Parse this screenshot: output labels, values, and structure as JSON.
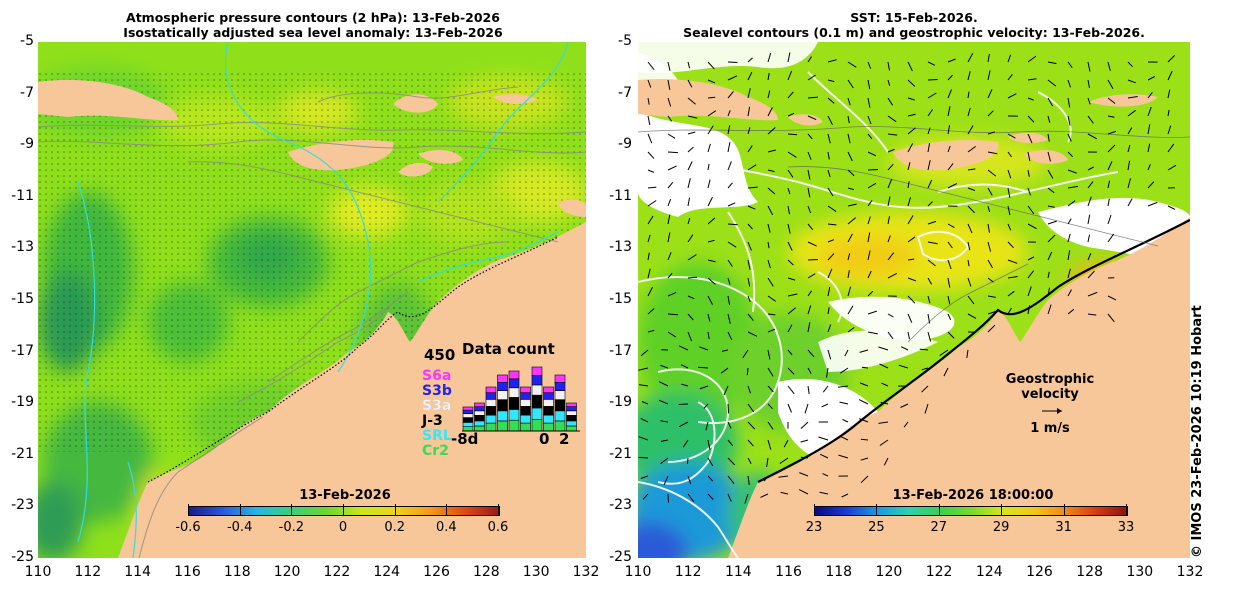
{
  "left_panel": {
    "title_line1": "Atmospheric pressure contours (2 hPa): 13-Feb-2026",
    "title_line2": "Isostatically adjusted sea level anomaly: 13-Feb-2026",
    "colorbar": {
      "date": "13-Feb-2026",
      "ticks": [
        "-0.6",
        "-0.4",
        "-0.2",
        "0",
        "0.2",
        "0.4",
        "0.6"
      ]
    },
    "data_count": {
      "title": "Data count",
      "max_label": "450",
      "missions": [
        {
          "name": "S6a",
          "color": "#ff33ff"
        },
        {
          "name": "S3b",
          "color": "#2222ee"
        },
        {
          "name": "S3a",
          "color": "#f2f2f2"
        },
        {
          "name": "J-3",
          "color": "#000000"
        },
        {
          "name": "SRL",
          "color": "#33e6ff"
        },
        {
          "name": "Cr2",
          "color": "#33dd55"
        }
      ],
      "x_left": "-8d",
      "x_mid": "0",
      "x_right": "2"
    }
  },
  "right_panel": {
    "title_line1": "SST: 15-Feb-2026.",
    "title_line2": "Sealevel contours (0.1 m) and geostrophic velocity: 13-Feb-2026.",
    "colorbar": {
      "date": "13-Feb-2026 18:00:00",
      "ticks": [
        "23",
        "25",
        "27",
        "29",
        "31",
        "33"
      ]
    },
    "velocity_legend": {
      "label": "Geostrophic velocity",
      "scale": "1 m/s"
    }
  },
  "y_ticks": [
    "-5",
    "-7",
    "-9",
    "-11",
    "-13",
    "-15",
    "-17",
    "-19",
    "-21",
    "-23",
    "-25"
  ],
  "x_ticks": [
    "110",
    "112",
    "114",
    "116",
    "118",
    "120",
    "122",
    "124",
    "126",
    "128",
    "130",
    "132"
  ],
  "copyright": "© IMOS 23-Feb-2026 10:19 Hobart",
  "colors": {
    "land": "#f7c79a",
    "cloud": "#ffffff"
  }
}
